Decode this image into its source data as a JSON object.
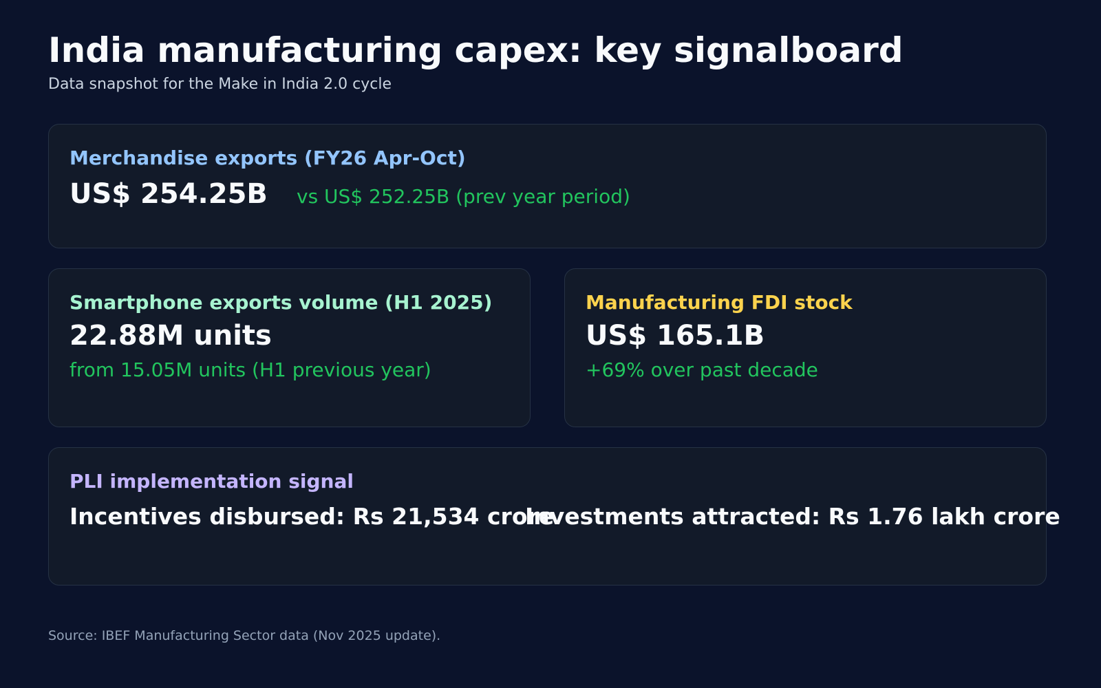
{
  "header": {
    "title": "India manufacturing capex: key signalboard",
    "subtitle": "Data snapshot for the Make in India 2.0 cycle"
  },
  "cards": [
    {
      "label": "Merchandise exports (FY26 Apr-Oct)",
      "value": "US$ 254.25B",
      "comparison": "vs US$ 252.25B (prev year period)",
      "label_color": "#93c5fd"
    },
    {
      "label": "Smartphone exports volume (H1 2025)",
      "value": "22.88M units",
      "comparison": "from 15.05M units (H1 previous year)",
      "label_color": "#a7f3d0"
    },
    {
      "label": "Manufacturing FDI stock",
      "value": "US$ 165.1B",
      "comparison": "+69% over past decade",
      "label_color": "#fcd34d"
    },
    {
      "label": "PLI implementation signal",
      "items": [
        "Incentives disbursed: Rs 21,534 crore",
        "Investments attracted: Rs 1.76 lakh crore"
      ],
      "label_color": "#c4b5fd"
    }
  ],
  "colors": {
    "background": "#0b132b",
    "card": "#121a29",
    "positive": "#22c55e"
  },
  "footer": {
    "source": "Source: IBEF Manufacturing Sector data (Nov 2025 update)."
  }
}
